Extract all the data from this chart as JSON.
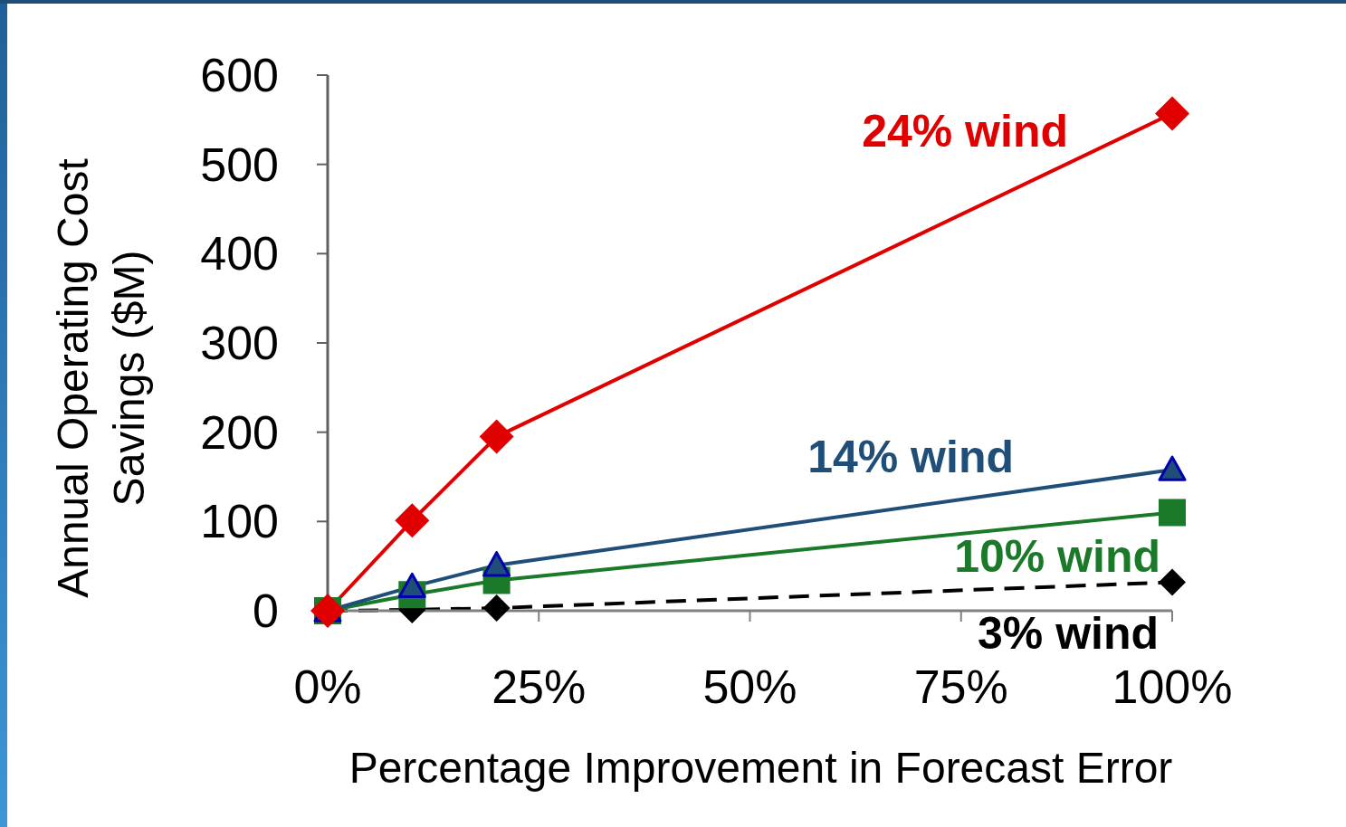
{
  "chart_data": {
    "type": "line",
    "xlabel": "Percentage Improvement in Forecast Error",
    "ylabel": "Annual Operating Cost Savings ($M)",
    "x": [
      0,
      10,
      20,
      100
    ],
    "xlim": [
      0,
      100
    ],
    "xticks": [
      {
        "value": 0,
        "label": "0%"
      },
      {
        "value": 25,
        "label": "25%"
      },
      {
        "value": 50,
        "label": "50%"
      },
      {
        "value": 75,
        "label": "75%"
      },
      {
        "value": 100,
        "label": "100%"
      }
    ],
    "ylim": [
      0,
      600
    ],
    "yticks": [
      0,
      100,
      200,
      300,
      400,
      500,
      600
    ],
    "legend": false,
    "series": [
      {
        "name": "24% wind",
        "color": "#e00000",
        "marker": "diamond",
        "values": [
          0,
          101,
          195,
          557
        ]
      },
      {
        "name": "14% wind",
        "color": "#1f4e79",
        "marker": "triangle",
        "values": [
          0,
          27,
          51,
          158
        ]
      },
      {
        "name": "10% wind",
        "color": "#1a7a2a",
        "marker": "square",
        "values": [
          0,
          18,
          34,
          110
        ]
      },
      {
        "name": "3% wind",
        "color": "#000000",
        "marker": "diamond",
        "line_style": "dashed",
        "values": [
          0,
          1,
          3,
          32
        ]
      }
    ]
  }
}
